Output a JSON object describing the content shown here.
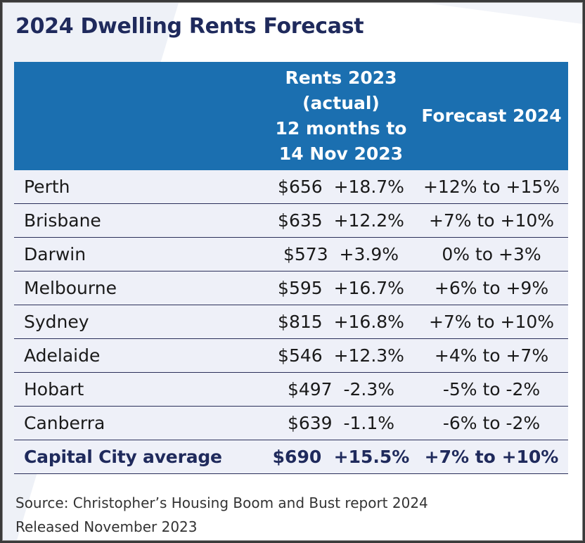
{
  "title": "2024 Dwelling Rents Forecast",
  "colors": {
    "title": "#1f2a5c",
    "header_bg": "#1b6fb0",
    "header_text": "#ffffff",
    "row_bg": "#eef0f8",
    "row_line": "#2a2f5a"
  },
  "table": {
    "headers": {
      "city": "",
      "rents_2023": "Rents 2023\n(actual)\n12 months to\n14 Nov 2023",
      "forecast_2024": "Forecast 2024"
    },
    "rows": [
      {
        "city": "Perth",
        "rent": "$656  +18.7%",
        "forecast": "+12% to +15%"
      },
      {
        "city": "Brisbane",
        "rent": "$635  +12.2%",
        "forecast": "+7% to +10%"
      },
      {
        "city": "Darwin",
        "rent": "$573  +3.9%",
        "forecast": "0% to +3%"
      },
      {
        "city": "Melbourne",
        "rent": "$595  +16.7%",
        "forecast": "+6% to +9%"
      },
      {
        "city": "Sydney",
        "rent": "$815  +16.8%",
        "forecast": "+7% to +10%"
      },
      {
        "city": "Adelaide",
        "rent": "$546  +12.3%",
        "forecast": "+4% to +7%"
      },
      {
        "city": "Hobart",
        "rent": "$497  -2.3%",
        "forecast": "-5% to -2%"
      },
      {
        "city": "Canberra",
        "rent": "$639  -1.1%",
        "forecast": "-6% to -2%"
      }
    ],
    "average": {
      "city": "Capital City average",
      "rent": "$690  +15.5%",
      "forecast": "+7% to +10%"
    }
  },
  "source": {
    "line1": "Source: Christopher’s Housing Boom and Bust report 2024",
    "line2": "Released November 2023"
  }
}
